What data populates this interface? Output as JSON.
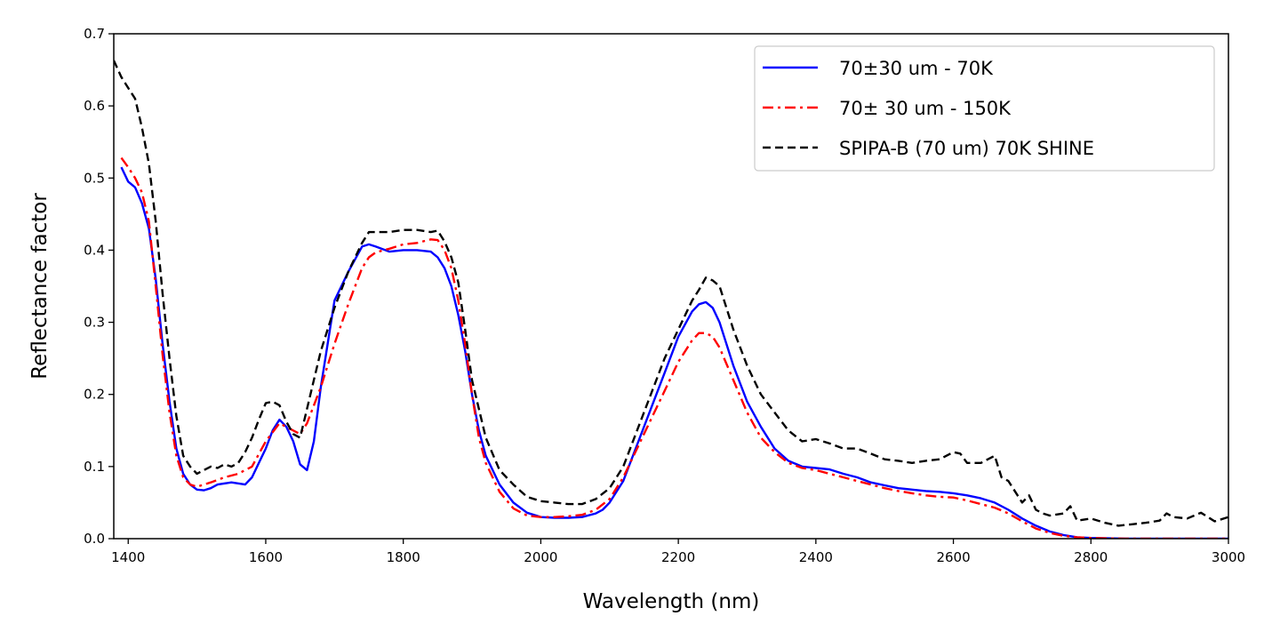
{
  "chart_data": {
    "type": "line",
    "title": "",
    "xlabel": "Wavelength (nm)",
    "ylabel": "Reflectance factor",
    "xlim": [
      1379,
      3000
    ],
    "ylim": [
      0.0,
      0.7
    ],
    "xticks": [
      1400,
      1600,
      1800,
      2000,
      2200,
      2400,
      2600,
      2800,
      3000
    ],
    "yticks": [
      0.0,
      0.1,
      0.2,
      0.3,
      0.4,
      0.5,
      0.6,
      0.7
    ],
    "xtick_labels": [
      "1400",
      "1600",
      "1800",
      "2000",
      "2200",
      "2400",
      "2600",
      "2800",
      "3000"
    ],
    "ytick_labels": [
      "0.0",
      "0.1",
      "0.2",
      "0.3",
      "0.4",
      "0.5",
      "0.6",
      "0.7"
    ],
    "grid": false,
    "legend_position": "top-right",
    "series": [
      {
        "name": "70±30 um - 70K",
        "color": "#0000ff",
        "style": "solid",
        "x": [
          1390,
          1400,
          1410,
          1420,
          1430,
          1440,
          1450,
          1460,
          1470,
          1480,
          1490,
          1500,
          1510,
          1520,
          1530,
          1550,
          1570,
          1580,
          1590,
          1600,
          1610,
          1620,
          1630,
          1640,
          1650,
          1660,
          1670,
          1680,
          1690,
          1700,
          1720,
          1740,
          1750,
          1760,
          1780,
          1800,
          1820,
          1840,
          1850,
          1860,
          1870,
          1880,
          1890,
          1900,
          1910,
          1920,
          1940,
          1960,
          1980,
          2000,
          2020,
          2040,
          2060,
          2080,
          2090,
          2100,
          2120,
          2140,
          2160,
          2180,
          2200,
          2220,
          2230,
          2240,
          2250,
          2260,
          2280,
          2300,
          2320,
          2340,
          2360,
          2380,
          2400,
          2420,
          2440,
          2460,
          2480,
          2500,
          2520,
          2540,
          2560,
          2580,
          2600,
          2620,
          2640,
          2660,
          2680,
          2700,
          2720,
          2740,
          2760,
          2780,
          2800,
          2850,
          2900,
          2950,
          3000
        ],
        "y": [
          0.515,
          0.495,
          0.487,
          0.465,
          0.43,
          0.36,
          0.27,
          0.19,
          0.125,
          0.09,
          0.075,
          0.068,
          0.067,
          0.07,
          0.075,
          0.078,
          0.075,
          0.085,
          0.105,
          0.125,
          0.15,
          0.165,
          0.155,
          0.135,
          0.103,
          0.095,
          0.135,
          0.21,
          0.27,
          0.33,
          0.37,
          0.405,
          0.408,
          0.405,
          0.398,
          0.4,
          0.4,
          0.398,
          0.39,
          0.375,
          0.35,
          0.31,
          0.26,
          0.2,
          0.15,
          0.115,
          0.075,
          0.05,
          0.036,
          0.03,
          0.029,
          0.029,
          0.03,
          0.035,
          0.04,
          0.05,
          0.08,
          0.13,
          0.18,
          0.23,
          0.28,
          0.315,
          0.325,
          0.328,
          0.32,
          0.3,
          0.24,
          0.19,
          0.155,
          0.125,
          0.108,
          0.1,
          0.098,
          0.096,
          0.09,
          0.085,
          0.078,
          0.074,
          0.07,
          0.068,
          0.066,
          0.065,
          0.063,
          0.06,
          0.056,
          0.05,
          0.04,
          0.028,
          0.018,
          0.01,
          0.005,
          0.002,
          0.001,
          0.0,
          0.0,
          0.0,
          0.0
        ]
      },
      {
        "name": "70± 30 um - 150K",
        "color": "#ff0000",
        "style": "dashdot",
        "x": [
          1390,
          1400,
          1410,
          1420,
          1430,
          1440,
          1450,
          1460,
          1470,
          1480,
          1490,
          1500,
          1520,
          1540,
          1560,
          1580,
          1600,
          1620,
          1640,
          1650,
          1660,
          1680,
          1700,
          1720,
          1740,
          1750,
          1760,
          1780,
          1800,
          1820,
          1840,
          1850,
          1860,
          1870,
          1880,
          1890,
          1900,
          1910,
          1920,
          1940,
          1960,
          1980,
          2000,
          2020,
          2040,
          2060,
          2080,
          2100,
          2120,
          2140,
          2160,
          2180,
          2200,
          2220,
          2230,
          2240,
          2250,
          2260,
          2280,
          2300,
          2320,
          2340,
          2360,
          2380,
          2400,
          2420,
          2440,
          2460,
          2480,
          2500,
          2520,
          2540,
          2560,
          2580,
          2600,
          2620,
          2640,
          2660,
          2680,
          2700,
          2720,
          2740,
          2760,
          2780,
          2800,
          2850,
          2900,
          2950,
          3000
        ],
        "y": [
          0.528,
          0.515,
          0.5,
          0.48,
          0.44,
          0.35,
          0.255,
          0.175,
          0.115,
          0.085,
          0.075,
          0.072,
          0.078,
          0.085,
          0.09,
          0.1,
          0.135,
          0.16,
          0.15,
          0.145,
          0.16,
          0.21,
          0.27,
          0.325,
          0.375,
          0.39,
          0.397,
          0.402,
          0.408,
          0.41,
          0.415,
          0.414,
          0.4,
          0.375,
          0.33,
          0.27,
          0.2,
          0.14,
          0.105,
          0.065,
          0.042,
          0.032,
          0.03,
          0.03,
          0.031,
          0.033,
          0.04,
          0.055,
          0.085,
          0.125,
          0.165,
          0.205,
          0.245,
          0.275,
          0.285,
          0.285,
          0.28,
          0.265,
          0.22,
          0.175,
          0.14,
          0.12,
          0.105,
          0.098,
          0.095,
          0.09,
          0.085,
          0.08,
          0.075,
          0.07,
          0.066,
          0.063,
          0.06,
          0.058,
          0.057,
          0.053,
          0.048,
          0.043,
          0.035,
          0.024,
          0.014,
          0.008,
          0.004,
          0.002,
          0.001,
          0.0,
          0.0,
          0.0,
          0.0
        ]
      },
      {
        "name": "SPIPA-B (70 um) 70K SHINE",
        "color": "#000000",
        "style": "dashed",
        "x": [
          1379,
          1390,
          1400,
          1410,
          1420,
          1430,
          1440,
          1450,
          1460,
          1470,
          1480,
          1490,
          1500,
          1510,
          1520,
          1530,
          1540,
          1550,
          1560,
          1570,
          1580,
          1590,
          1600,
          1610,
          1620,
          1630,
          1640,
          1650,
          1660,
          1670,
          1680,
          1700,
          1720,
          1740,
          1750,
          1760,
          1780,
          1800,
          1820,
          1840,
          1850,
          1860,
          1870,
          1880,
          1890,
          1900,
          1920,
          1940,
          1960,
          1980,
          2000,
          2020,
          2040,
          2060,
          2080,
          2100,
          2120,
          2140,
          2160,
          2180,
          2200,
          2220,
          2230,
          2240,
          2250,
          2260,
          2280,
          2300,
          2320,
          2340,
          2360,
          2380,
          2400,
          2420,
          2440,
          2460,
          2480,
          2500,
          2520,
          2540,
          2560,
          2580,
          2600,
          2610,
          2620,
          2640,
          2660,
          2670,
          2680,
          2690,
          2700,
          2710,
          2720,
          2730,
          2740,
          2760,
          2770,
          2780,
          2800,
          2820,
          2840,
          2860,
          2880,
          2900,
          2910,
          2920,
          2940,
          2960,
          2980,
          3000
        ],
        "y": [
          0.663,
          0.64,
          0.625,
          0.61,
          0.57,
          0.52,
          0.44,
          0.34,
          0.25,
          0.17,
          0.115,
          0.1,
          0.09,
          0.095,
          0.1,
          0.098,
          0.103,
          0.1,
          0.105,
          0.12,
          0.14,
          0.165,
          0.188,
          0.19,
          0.185,
          0.162,
          0.145,
          0.14,
          0.18,
          0.22,
          0.26,
          0.32,
          0.37,
          0.41,
          0.425,
          0.425,
          0.425,
          0.428,
          0.428,
          0.425,
          0.427,
          0.412,
          0.39,
          0.355,
          0.29,
          0.22,
          0.14,
          0.095,
          0.075,
          0.058,
          0.052,
          0.05,
          0.048,
          0.048,
          0.055,
          0.07,
          0.1,
          0.15,
          0.2,
          0.25,
          0.29,
          0.33,
          0.345,
          0.362,
          0.358,
          0.35,
          0.29,
          0.24,
          0.2,
          0.175,
          0.15,
          0.135,
          0.138,
          0.132,
          0.125,
          0.125,
          0.118,
          0.11,
          0.108,
          0.105,
          0.108,
          0.11,
          0.12,
          0.118,
          0.105,
          0.105,
          0.115,
          0.085,
          0.08,
          0.065,
          0.05,
          0.06,
          0.04,
          0.035,
          0.032,
          0.035,
          0.045,
          0.025,
          0.028,
          0.022,
          0.018,
          0.02,
          0.022,
          0.025,
          0.035,
          0.03,
          0.028,
          0.036,
          0.024,
          0.03
        ]
      }
    ]
  }
}
